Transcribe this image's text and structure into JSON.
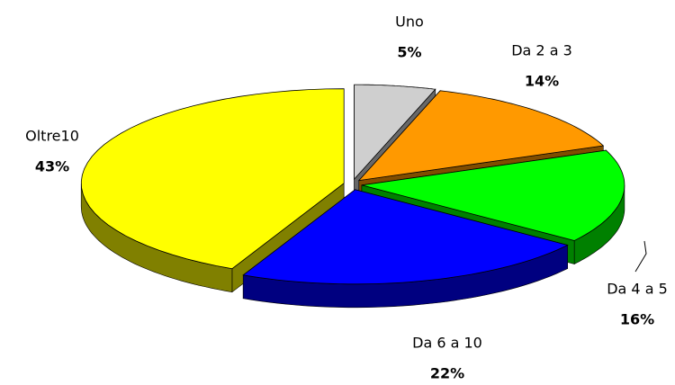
{
  "chart_data": {
    "type": "pie",
    "categories": [
      "Uno",
      "Da 2 a 3",
      "Da 4 a 5",
      "Da 6 a 10",
      "Oltre10"
    ],
    "values": [
      5,
      14,
      16,
      22,
      43
    ],
    "value_labels": [
      "5%",
      "14%",
      "16%",
      "22%",
      "43%"
    ],
    "colors": [
      "#cfcfcf",
      "#ff9900",
      "#00ff00",
      "#0000ff",
      "#ffff00"
    ]
  }
}
